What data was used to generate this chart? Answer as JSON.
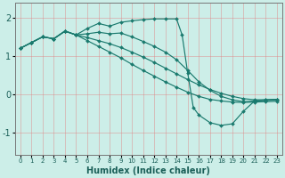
{
  "title": "",
  "xlabel": "Humidex (Indice chaleur)",
  "ylabel": "",
  "bg_color": "#cceee8",
  "line_color": "#1a7a6e",
  "grid_color": "#e08080",
  "xlim": [
    -0.5,
    23.5
  ],
  "ylim": [
    -1.6,
    2.4
  ],
  "xticks": [
    0,
    1,
    2,
    3,
    4,
    5,
    6,
    7,
    8,
    9,
    10,
    11,
    12,
    13,
    14,
    15,
    16,
    17,
    18,
    19,
    20,
    21,
    22,
    23
  ],
  "yticks": [
    -1,
    0,
    1,
    2
  ],
  "series": [
    {
      "x": [
        0,
        1,
        2,
        3,
        4,
        5,
        6,
        7,
        8,
        9,
        10,
        11,
        12,
        13,
        14,
        14.5,
        15,
        15.5,
        16,
        17,
        18,
        19,
        20,
        21,
        22,
        23
      ],
      "y": [
        1.2,
        1.35,
        1.5,
        1.45,
        1.65,
        1.55,
        1.72,
        1.85,
        1.78,
        1.88,
        1.92,
        1.95,
        1.97,
        1.97,
        1.97,
        1.55,
        0.55,
        -0.35,
        -0.55,
        -0.75,
        -0.82,
        -0.78,
        -0.45,
        -0.18,
        -0.15,
        -0.14
      ]
    },
    {
      "x": [
        0,
        1,
        2,
        3,
        4,
        5,
        6,
        7,
        8,
        9,
        10,
        11,
        12,
        13,
        14,
        15,
        16,
        17,
        18,
        19,
        20,
        21,
        22,
        23
      ],
      "y": [
        1.2,
        1.35,
        1.5,
        1.45,
        1.65,
        1.55,
        1.58,
        1.62,
        1.58,
        1.6,
        1.5,
        1.38,
        1.25,
        1.1,
        0.9,
        0.62,
        0.32,
        0.1,
        -0.06,
        -0.15,
        -0.2,
        -0.18,
        -0.17,
        -0.15
      ]
    },
    {
      "x": [
        0,
        1,
        2,
        3,
        4,
        5,
        6,
        7,
        8,
        9,
        10,
        11,
        12,
        13,
        14,
        15,
        16,
        17,
        18,
        19,
        20,
        21,
        22,
        23
      ],
      "y": [
        1.2,
        1.35,
        1.5,
        1.45,
        1.65,
        1.55,
        1.48,
        1.4,
        1.32,
        1.22,
        1.1,
        0.97,
        0.83,
        0.68,
        0.53,
        0.38,
        0.24,
        0.12,
        0.02,
        -0.06,
        -0.12,
        -0.15,
        -0.15,
        -0.14
      ]
    },
    {
      "x": [
        0,
        1,
        2,
        3,
        4,
        5,
        6,
        7,
        8,
        9,
        10,
        11,
        12,
        13,
        14,
        15,
        16,
        17,
        18,
        19,
        20,
        21,
        22,
        23
      ],
      "y": [
        1.2,
        1.35,
        1.5,
        1.45,
        1.65,
        1.55,
        1.4,
        1.25,
        1.1,
        0.95,
        0.78,
        0.62,
        0.47,
        0.32,
        0.18,
        0.05,
        -0.06,
        -0.14,
        -0.18,
        -0.21,
        -0.22,
        -0.21,
        -0.2,
        -0.19
      ]
    }
  ]
}
